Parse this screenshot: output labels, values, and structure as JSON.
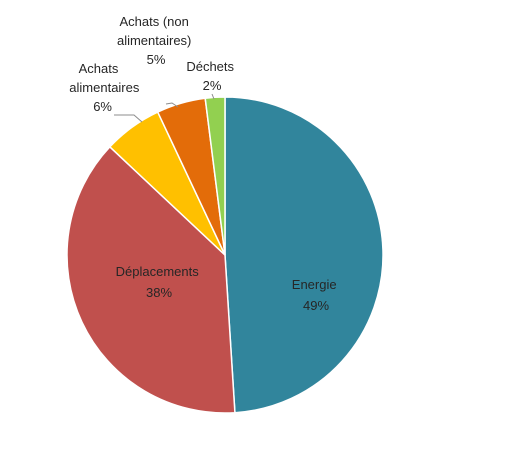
{
  "chart_data": {
    "type": "pie",
    "title": "",
    "categories": [
      "Energie",
      "Déplacements",
      "Achats alimentaires",
      "Achats (non alimentaires)",
      "Déchets"
    ],
    "values": [
      49,
      38,
      6,
      5,
      2
    ],
    "slices": [
      {
        "name_lines": [
          "Energie"
        ],
        "percent_label": "49%",
        "value": 49,
        "color": "#31859c"
      },
      {
        "name_lines": [
          "Déplacements"
        ],
        "percent_label": "38%",
        "value": 38,
        "color": "#c0504d"
      },
      {
        "name_lines": [
          "Achats",
          "alimentaires"
        ],
        "percent_label": "6%",
        "value": 6,
        "color": "#ffc000"
      },
      {
        "name_lines": [
          "Achats (non",
          "alimentaires)"
        ],
        "percent_label": "5%",
        "value": 5,
        "color": "#e36c09"
      },
      {
        "name_lines": [
          "Déchets"
        ],
        "percent_label": "2%",
        "value": 2,
        "color": "#92d050"
      }
    ],
    "legend": "none",
    "grid": false
  }
}
